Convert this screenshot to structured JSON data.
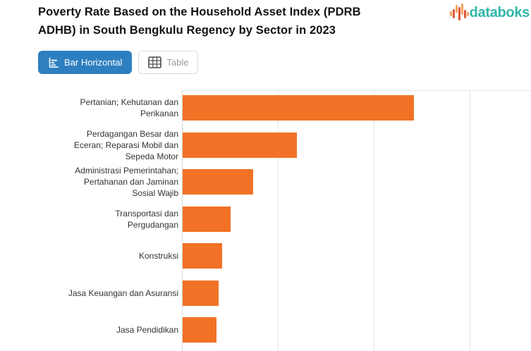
{
  "header": {
    "title": "Poverty Rate Based on the Household Asset Index (PDRB ADHB) in South Bengkulu Regency by Sector in 2023",
    "title_lines": [
      "Poverty Rate Based on the Household Asset Index (PDRB",
      "ADHB) in South Bengkulu Regency by Sector in 2023"
    ],
    "brand": {
      "name": "databoks",
      "text_color": "#2FB7A9",
      "icon_color_red": "#E05336",
      "icon_color_orange": "#F2A35C"
    }
  },
  "toolbar": {
    "tabs": [
      {
        "label": "Bar Horizontal",
        "active": true,
        "icon": "bar-horizontal-icon"
      },
      {
        "label": "Table",
        "active": false,
        "icon": "table-icon"
      }
    ],
    "active_tab_bg": "#2E7FC0",
    "inactive_tab_text": "#9B9B9B"
  },
  "chart_data": {
    "type": "bar",
    "orientation": "horizontal",
    "title": "Poverty Rate Based on the Household Asset Index (PDRB ADHB) in South Bengkulu Regency by Sector in 2023",
    "categories": [
      "Pertanian; Kehutanan dan Perikanan",
      "Perdagangan Besar dan Eceran; Reparasi Mobil dan Sepeda Motor",
      "Administrasi Pemerintahan; Pertahanan dan Jaminan Sosial Wajib",
      "Transportasi dan Pergudangan",
      "Konstruksi",
      "Jasa Keuangan dan Asuransi",
      "Jasa Pendidikan"
    ],
    "category_label_lines": [
      [
        "Pertanian; Kehutanan dan",
        "Perikanan"
      ],
      [
        "Perdagangan Besar dan",
        "Eceran; Reparasi Mobil dan",
        "Sepeda Motor"
      ],
      [
        "Administrasi Pemerintahan;",
        "Pertahanan dan Jaminan",
        "Sosial Wajib"
      ],
      [
        "Transportasi dan",
        "Pergudangan"
      ],
      [
        "Konstruksi"
      ],
      [
        "Jasa Keuangan dan Asuransi"
      ],
      [
        "Jasa Pendidikan"
      ]
    ],
    "values_pct_of_max": [
      100,
      49.4,
      30.6,
      20.7,
      17.1,
      15.5,
      14.6
    ],
    "values_grid_units_estimated": [
      2.42,
      1.2,
      0.74,
      0.5,
      0.41,
      0.38,
      0.35
    ],
    "x_axis_tick_labels": [],
    "axis_note": "x-axis tick labels and chart bottom are cropped out of the visible screenshot",
    "bar_color": "#F17226",
    "gridline_color": "#E6E6E6",
    "grid": "3 vertical gridlines visible, evenly spaced",
    "legend": "none",
    "ylabel": "",
    "xlabel": ""
  }
}
